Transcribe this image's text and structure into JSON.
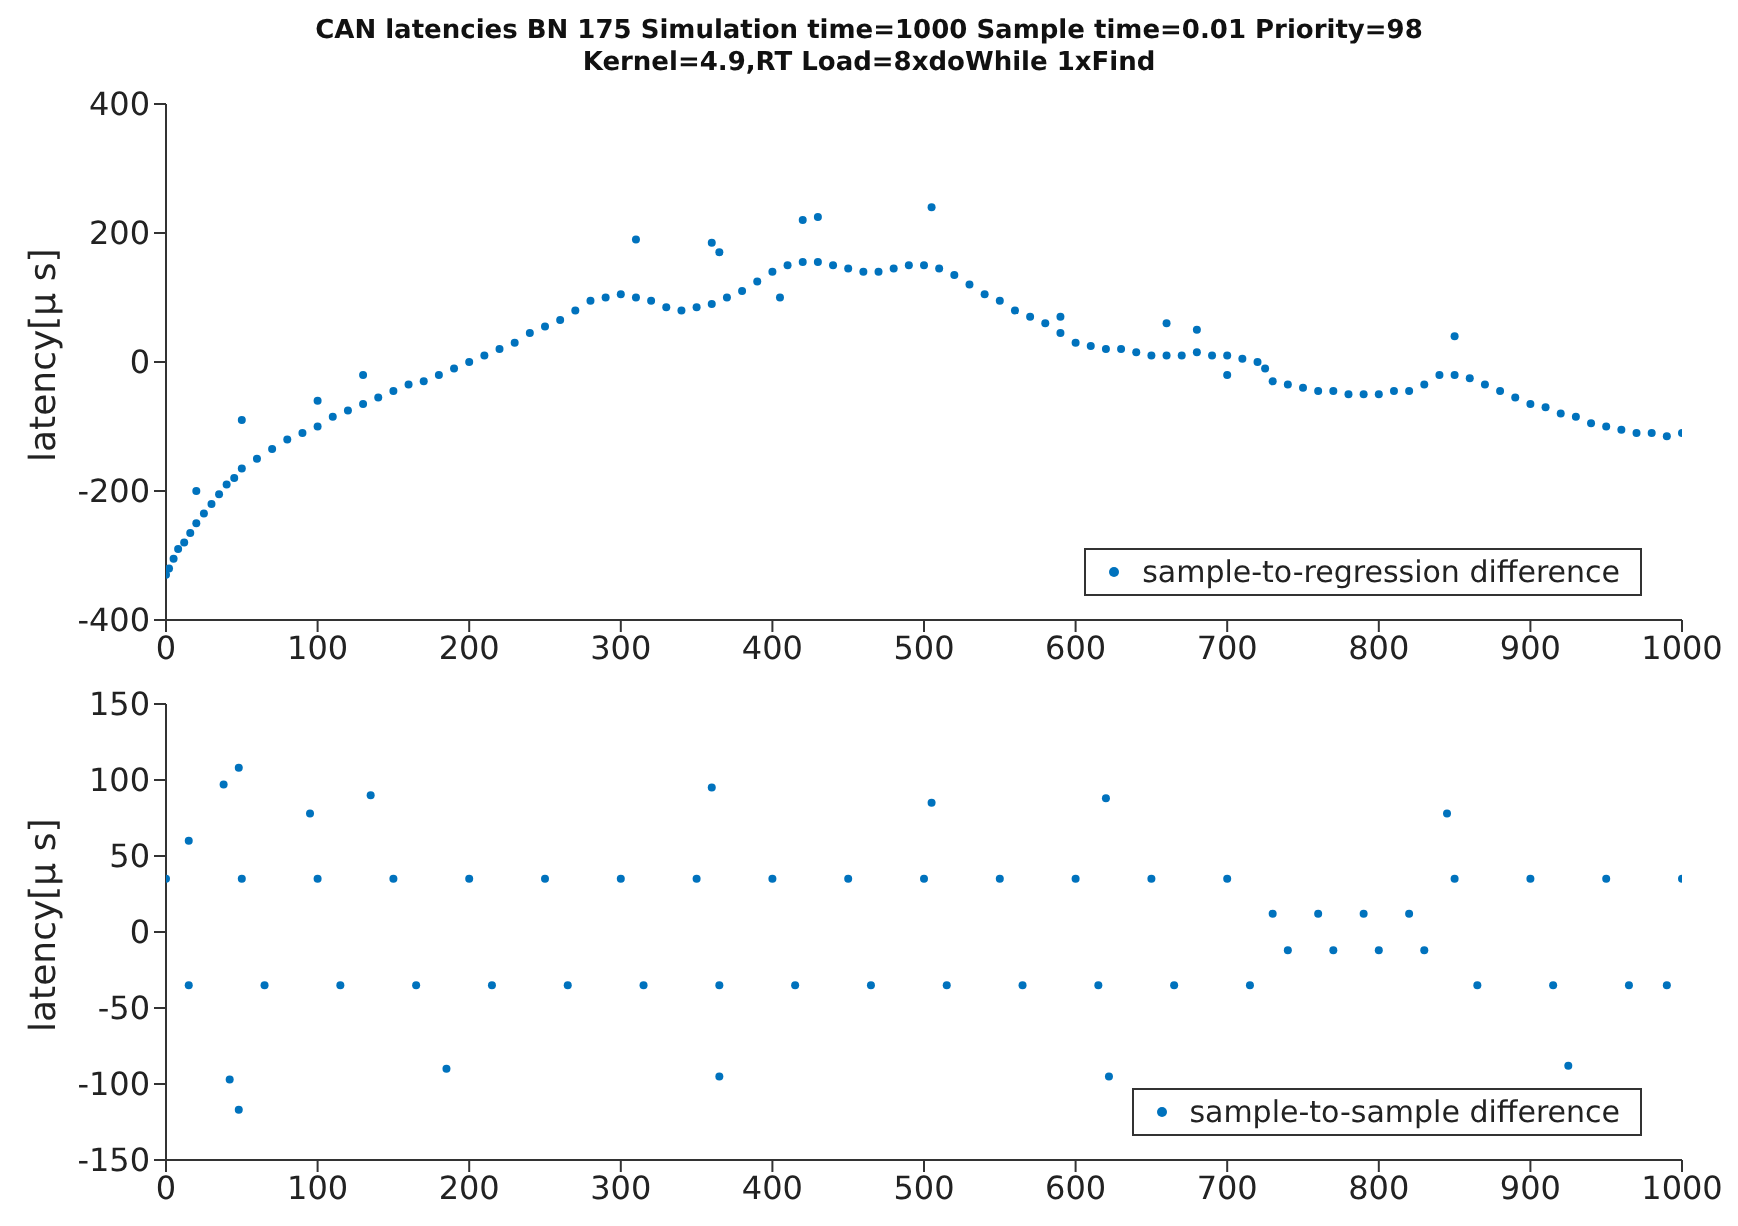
{
  "chart_data": [
    {
      "type": "scatter",
      "title": "CAN latencies BN 175    Simulation time=1000 Sample time=0.01 Priority=98",
      "subtitle": "Kernel=4.9,RT  Load=8xdoWhile 1xFind",
      "ylabel": "latency[μ s]",
      "xlim": [
        0,
        1000
      ],
      "xticks": [
        0,
        100,
        200,
        300,
        400,
        500,
        600,
        700,
        800,
        900,
        1000
      ],
      "ylim": [
        -400,
        400
      ],
      "yticks": [
        -400,
        -200,
        0,
        200,
        400
      ],
      "marker": "circle",
      "legend": "bottom right",
      "series": [
        {
          "name": "sample-to-regression difference",
          "color": "#0072bd",
          "x": [
            0,
            2,
            5,
            8,
            12,
            16,
            20,
            25,
            30,
            35,
            40,
            45,
            50,
            60,
            70,
            80,
            90,
            100,
            110,
            120,
            130,
            140,
            150,
            160,
            170,
            180,
            190,
            200,
            210,
            220,
            230,
            240,
            250,
            260,
            270,
            280,
            290,
            300,
            310,
            320,
            330,
            340,
            350,
            360,
            370,
            380,
            390,
            400,
            410,
            420,
            430,
            440,
            450,
            460,
            470,
            480,
            490,
            500,
            510,
            520,
            530,
            540,
            550,
            560,
            570,
            580,
            590,
            600,
            610,
            620,
            630,
            640,
            650,
            660,
            670,
            680,
            690,
            700,
            710,
            720,
            725,
            730,
            740,
            750,
            760,
            770,
            780,
            790,
            800,
            810,
            820,
            830,
            840,
            850,
            860,
            870,
            880,
            890,
            900,
            910,
            920,
            930,
            940,
            950,
            960,
            970,
            980,
            990,
            1000,
            310,
            360,
            420,
            430,
            505,
            365,
            590,
            660,
            680,
            850,
            130,
            50,
            405,
            700,
            20,
            100
          ],
          "values": [
            -330,
            -320,
            -305,
            -290,
            -280,
            -265,
            -250,
            -235,
            -220,
            -205,
            -190,
            -180,
            -165,
            -150,
            -135,
            -120,
            -110,
            -100,
            -85,
            -75,
            -65,
            -55,
            -45,
            -35,
            -30,
            -20,
            -10,
            0,
            10,
            20,
            30,
            45,
            55,
            65,
            80,
            95,
            100,
            105,
            100,
            95,
            85,
            80,
            85,
            90,
            100,
            110,
            125,
            140,
            150,
            155,
            155,
            150,
            145,
            140,
            140,
            145,
            150,
            150,
            145,
            135,
            120,
            105,
            95,
            80,
            70,
            60,
            45,
            30,
            25,
            20,
            20,
            15,
            10,
            10,
            10,
            15,
            10,
            10,
            5,
            0,
            -10,
            -30,
            -35,
            -40,
            -45,
            -45,
            -50,
            -50,
            -50,
            -45,
            -45,
            -35,
            -20,
            -20,
            -25,
            -35,
            -45,
            -55,
            -65,
            -70,
            -80,
            -85,
            -95,
            -100,
            -105,
            -110,
            -110,
            -115,
            -110,
            190,
            185,
            220,
            225,
            240,
            170,
            70,
            60,
            50,
            40,
            -20,
            -90,
            100,
            -20,
            -200,
            -60
          ]
        }
      ]
    },
    {
      "type": "scatter",
      "ylabel": "latency[μ s]",
      "xlim": [
        0,
        1000
      ],
      "xticks": [
        0,
        100,
        200,
        300,
        400,
        500,
        600,
        700,
        800,
        900,
        1000
      ],
      "ylim": [
        -150,
        150
      ],
      "yticks": [
        -150,
        -100,
        -50,
        0,
        50,
        100,
        150
      ],
      "marker": "circle",
      "legend": "bottom right",
      "series": [
        {
          "name": "sample-to-sample difference",
          "color": "#0072bd",
          "x": [
            0,
            50,
            100,
            150,
            200,
            250,
            300,
            350,
            400,
            450,
            500,
            550,
            600,
            650,
            700,
            15,
            65,
            115,
            165,
            215,
            265,
            315,
            365,
            415,
            465,
            515,
            565,
            615,
            665,
            715,
            730,
            760,
            790,
            820,
            740,
            770,
            800,
            830,
            850,
            900,
            950,
            1000,
            865,
            915,
            965,
            990,
            38,
            48,
            42,
            48,
            135,
            360,
            365,
            620,
            622,
            925,
            845,
            505,
            95,
            15,
            185
          ],
          "values": [
            35,
            35,
            35,
            35,
            35,
            35,
            35,
            35,
            35,
            35,
            35,
            35,
            35,
            35,
            35,
            -35,
            -35,
            -35,
            -35,
            -35,
            -35,
            -35,
            -35,
            -35,
            -35,
            -35,
            -35,
            -35,
            -35,
            -35,
            12,
            12,
            12,
            12,
            -12,
            -12,
            -12,
            -12,
            35,
            35,
            35,
            35,
            -35,
            -35,
            -35,
            -35,
            97,
            108,
            -97,
            -117,
            90,
            95,
            -95,
            88,
            -95,
            -88,
            78,
            85,
            78,
            60,
            -90
          ]
        }
      ]
    }
  ]
}
